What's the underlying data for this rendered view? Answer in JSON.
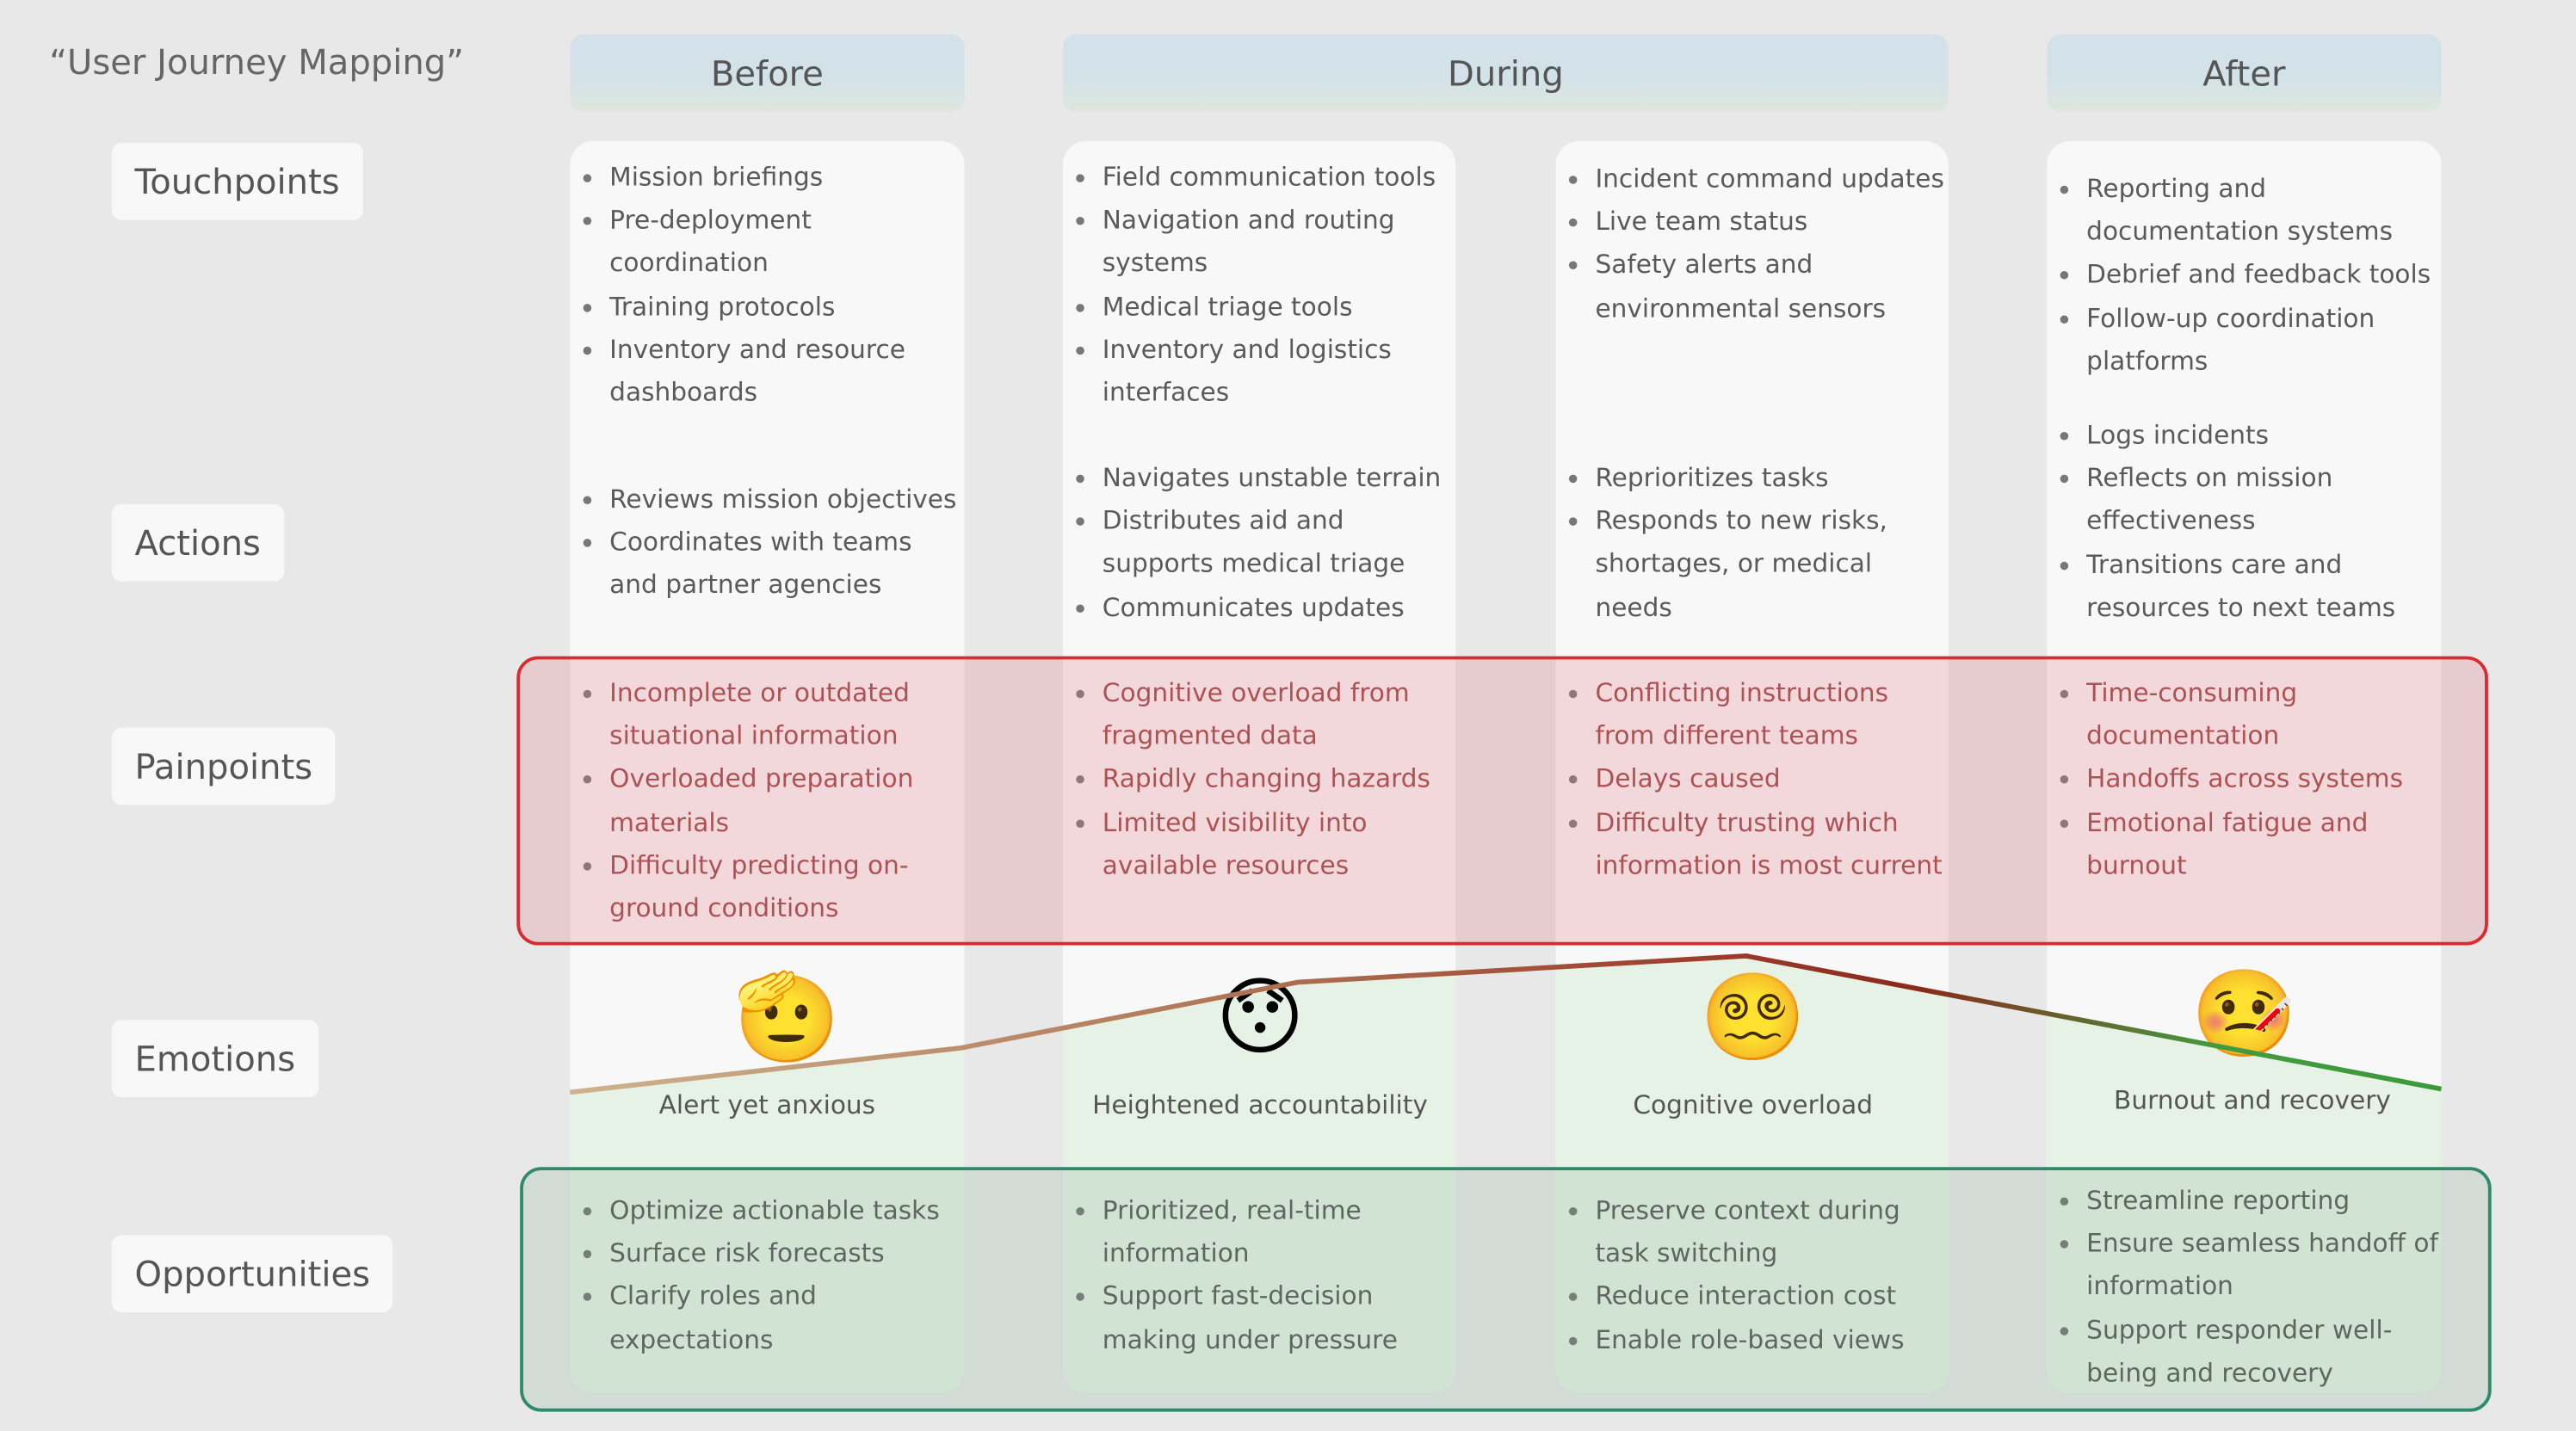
{
  "title": "“User Journey Mapping”",
  "phases": [
    "Before",
    "During",
    "After"
  ],
  "rows": [
    "Touchpoints",
    "Actions",
    "Painpoints",
    "Emotions",
    "Opportunities"
  ],
  "columns": [
    {
      "touchpoints": [
        "Mission briefings",
        "Pre-deployment coordination",
        "Training protocols",
        "Inventory and resource dashboards"
      ],
      "actions": [
        "Reviews mission objectives",
        "Coordinates with teams and partner agencies"
      ],
      "painpoints": [
        "Incomplete or outdated situational information",
        "Overloaded preparation materials",
        "Difficulty predicting on-ground conditions"
      ],
      "emotion": {
        "emoji": "🫡",
        "label": "Alert yet anxious"
      },
      "opportunities": [
        "Optimize actionable tasks",
        "Surface risk forecasts",
        "Clarify roles and expectations"
      ]
    },
    {
      "touchpoints": [
        "Field communication tools",
        "Navigation and routing systems",
        "Medical triage tools",
        "Inventory and logistics interfaces"
      ],
      "actions": [
        "Navigates unstable terrain",
        "Distributes aid and supports medical triage",
        "Communicates updates"
      ],
      "painpoints": [
        "Cognitive overload from fragmented data",
        "Rapidly changing hazards",
        "Limited visibility into available resources"
      ],
      "emotion": {
        "emoji": "😯",
        "label": "Heightened accountability"
      },
      "opportunities": [
        "Prioritized, real-time information",
        "Support fast-decision making under pressure"
      ]
    },
    {
      "touchpoints": [
        "Incident command updates",
        "Live team status",
        "Safety alerts and environmental sensors"
      ],
      "actions": [
        "Reprioritizes tasks",
        "Responds to new risks, shortages, or medical needs"
      ],
      "painpoints": [
        "Conflicting instructions from different teams",
        "Delays caused",
        "Difficulty trusting which information is most current"
      ],
      "emotion": {
        "emoji": "😵‍💫",
        "label": "Cognitive overload"
      },
      "opportunities": [
        "Preserve context during task switching",
        "Reduce interaction cost",
        "Enable role-based views"
      ]
    },
    {
      "touchpoints": [
        "Reporting and documentation systems",
        "Debrief and feedback tools",
        "Follow-up coordination platforms"
      ],
      "actions": [
        "Logs incidents",
        "Reflects on mission effectiveness",
        "Transitions care and resources to next teams"
      ],
      "painpoints": [
        "Time-consuming documentation",
        "Handoffs across systems",
        "Emotional fatigue and burnout"
      ],
      "emotion": {
        "emoji": "🤒",
        "label": "Burnout and recovery"
      },
      "opportunities": [
        "Streamline reporting",
        "Ensure seamless handoff of information",
        "Support responder well-being and recovery"
      ]
    }
  ]
}
